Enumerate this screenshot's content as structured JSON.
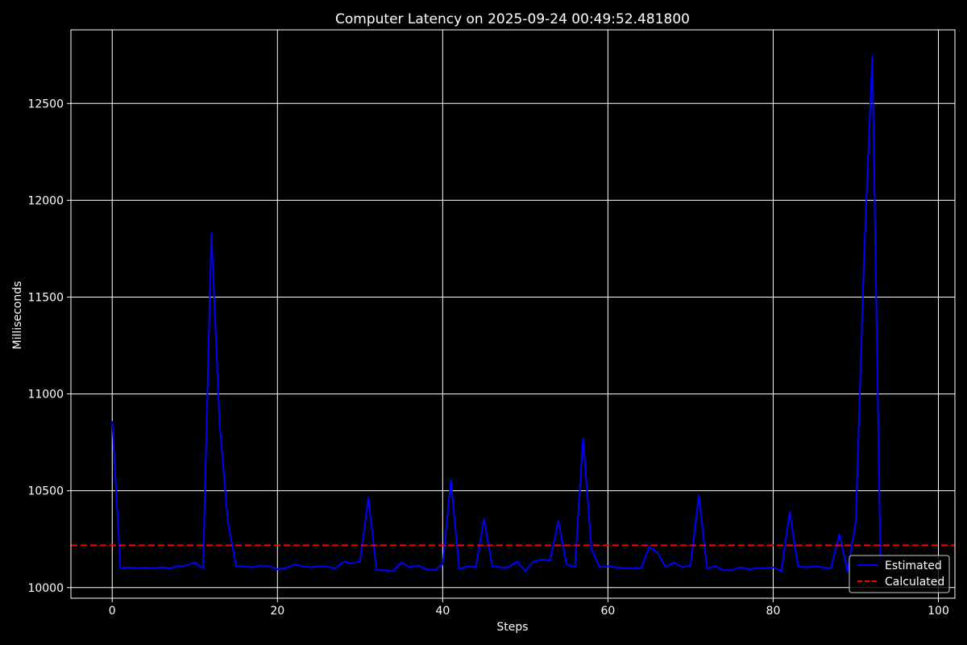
{
  "chart_data": {
    "type": "line",
    "title": "Computer Latency on 2025-09-24 00:49:52.481800",
    "xlabel": "Steps",
    "ylabel": "Milliseconds",
    "xlim": [
      -5,
      102
    ],
    "ylim": [
      9945,
      12880
    ],
    "xticks": [
      0,
      20,
      40,
      60,
      80,
      100
    ],
    "yticks": [
      10000,
      10500,
      11000,
      11500,
      12000,
      12500
    ],
    "grid": true,
    "legend_position": "bottom-right",
    "series": [
      {
        "name": "Estimated",
        "color": "#0000ff",
        "style": "solid",
        "x": [
          0,
          1,
          2,
          3,
          4,
          5,
          6,
          7,
          8,
          9,
          10,
          11,
          12,
          13,
          14,
          15,
          16,
          17,
          18,
          19,
          20,
          21,
          22,
          23,
          24,
          25,
          26,
          27,
          28,
          29,
          30,
          31,
          32,
          33,
          34,
          35,
          36,
          37,
          38,
          39,
          40,
          41,
          42,
          43,
          44,
          45,
          46,
          47,
          48,
          49,
          50,
          51,
          52,
          53,
          54,
          55,
          56,
          57,
          58,
          59,
          60,
          61,
          62,
          63,
          64,
          65,
          66,
          67,
          68,
          69,
          70,
          71,
          72,
          73,
          74,
          75,
          76,
          77,
          78,
          79,
          80,
          81,
          82,
          83,
          84,
          85,
          86,
          87,
          88,
          89,
          90,
          91,
          92,
          93
        ],
        "y": [
          10860,
          10100,
          10105,
          10100,
          10103,
          10100,
          10105,
          10100,
          10110,
          10115,
          10130,
          10100,
          11830,
          10850,
          10340,
          10110,
          10110,
          10105,
          10115,
          10110,
          10095,
          10100,
          10120,
          10110,
          10105,
          10110,
          10108,
          10100,
          10135,
          10125,
          10135,
          10465,
          10090,
          10090,
          10085,
          10130,
          10105,
          10115,
          10095,
          10090,
          10120,
          10555,
          10095,
          10110,
          10105,
          10355,
          10110,
          10105,
          10105,
          10135,
          10085,
          10135,
          10145,
          10140,
          10345,
          10120,
          10105,
          10770,
          10200,
          10105,
          10110,
          10105,
          10100,
          10100,
          10100,
          10210,
          10180,
          10105,
          10130,
          10105,
          10115,
          10475,
          10100,
          10110,
          10090,
          10090,
          10105,
          10095,
          10100,
          10100,
          10105,
          10085,
          10390,
          10110,
          10105,
          10110,
          10105,
          10100,
          10275,
          10085,
          10340,
          11700,
          12745,
          10120
        ]
      },
      {
        "name": "Calculated",
        "color": "#ff0000",
        "style": "dashed",
        "y_constant": 10218
      }
    ]
  }
}
